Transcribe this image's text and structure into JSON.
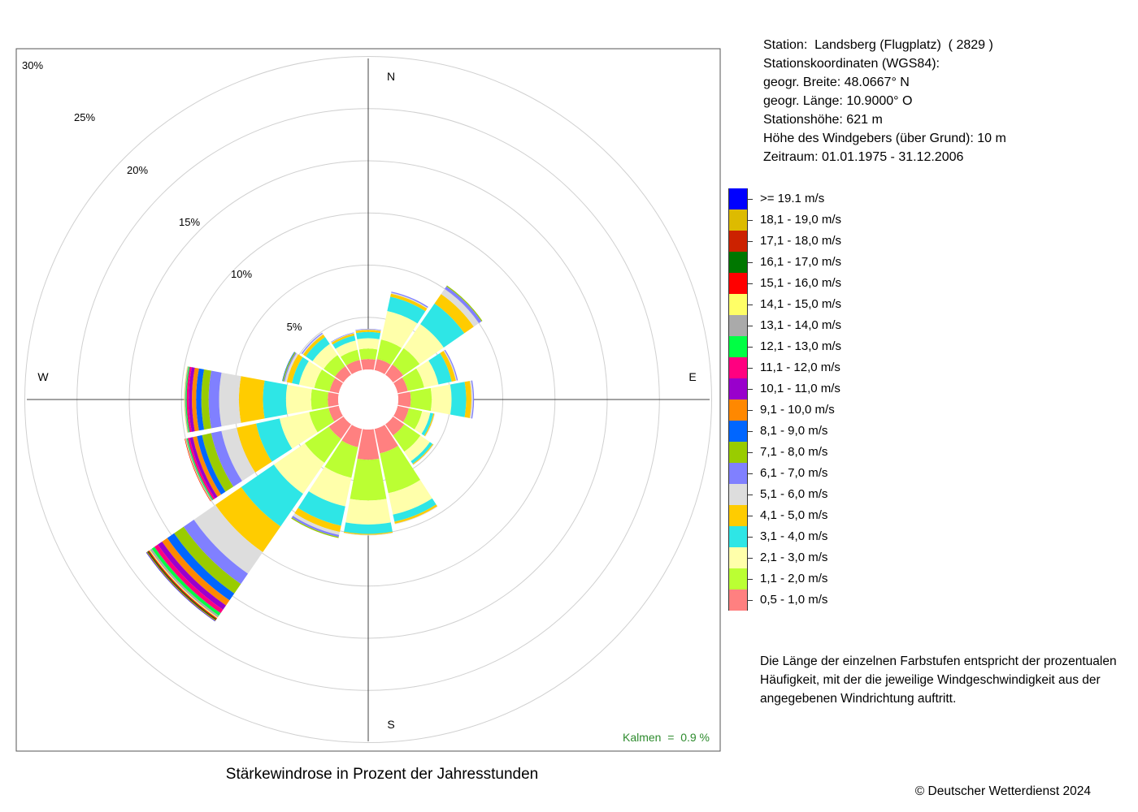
{
  "station": {
    "lines": [
      "Station:  Landsberg (Flugplatz)  ( 2829 )",
      "Stationskoordinaten (WGS84):",
      "geogr. Breite: 48.0667° N",
      "geogr. Länge: 10.9000° O",
      "Stationshöhe: 621 m",
      "Höhe des Windgebers (über Grund): 10 m",
      "Zeitraum: 01.01.1975 - 31.12.2006"
    ]
  },
  "explanation": "Die Länge der einzelnen Farbstufen entspricht der prozentualen Häufigkeit, mit der die jeweilige Windgeschwindigkeit aus der angegebenen Windrichtung auftritt.",
  "chart_title": "Stärkewindrose in Prozent der Jahresstunden",
  "copyright": "© Deutscher Wetterdienst  2024",
  "calm_text": "Kalmen  =  0.9 %",
  "chart_data": {
    "type": "wind-rose",
    "title": "Stärkewindrose in Prozent der Jahresstunden",
    "directions": [
      "N",
      "NNE",
      "NE",
      "ENE",
      "E",
      "ESE",
      "SE",
      "SSE",
      "S",
      "SSW",
      "SW",
      "WSW",
      "W",
      "WNW",
      "NW",
      "NNW"
    ],
    "compass_labels": [
      "N",
      "E",
      "S",
      "W"
    ],
    "radial_axis": {
      "unit": "%",
      "min": 0,
      "max": 30,
      "ticks": [
        5,
        10,
        15,
        20,
        25,
        30
      ],
      "tick_labels": [
        "5%",
        "10%",
        "15%",
        "20%",
        "25%",
        "30%"
      ]
    },
    "calm_percent": 0.9,
    "speed_classes": [
      {
        "label": "0,5 - 1,0 m/s",
        "color": "#ff8080"
      },
      {
        "label": "1,1 - 2,0 m/s",
        "color": "#bbff33"
      },
      {
        "label": "2,1 - 3,0 m/s",
        "color": "#ffffaa"
      },
      {
        "label": "3,1 - 4,0 m/s",
        "color": "#2ee6e6"
      },
      {
        "label": "4,1 - 5,0 m/s",
        "color": "#ffcc00"
      },
      {
        "label": "5,1 - 6,0 m/s",
        "color": "#dddddd"
      },
      {
        "label": "6,1 - 7,0 m/s",
        "color": "#8080ff"
      },
      {
        "label": "7,1 - 8,0 m/s",
        "color": "#99cc00"
      },
      {
        "label": "8,1 - 9,0 m/s",
        "color": "#0066ff"
      },
      {
        "label": "9,1 - 10,0 m/s",
        "color": "#ff8800"
      },
      {
        "label": "10,1 - 11,0 m/s",
        "color": "#9900cc"
      },
      {
        "label": "11,1 - 12,0 m/s",
        "color": "#ff0080"
      },
      {
        "label": "12,1 - 13,0 m/s",
        "color": "#00ff44"
      },
      {
        "label": "13,1 - 14,0 m/s",
        "color": "#aaaaaa"
      },
      {
        "label": "14,1 - 15,0 m/s",
        "color": "#ffff66"
      },
      {
        "label": "15,1 - 16,0 m/s",
        "color": "#ff0000"
      },
      {
        "label": "16,1 - 17,0 m/s",
        "color": "#007700"
      },
      {
        "label": "17,1 - 18,0 m/s",
        "color": "#cc2200"
      },
      {
        "label": "18,1 - 19,0 m/s",
        "color": "#ddbb00"
      },
      {
        "label": ">= 19.1 m/s",
        "color": "#0000ff"
      }
    ],
    "series": [
      {
        "direction": "N",
        "values": [
          1.0,
          1.0,
          1.0,
          0.6,
          0.2,
          0.05,
          0.05,
          0,
          0,
          0,
          0,
          0,
          0,
          0,
          0,
          0,
          0,
          0,
          0,
          0
        ]
      },
      {
        "direction": "NNE",
        "values": [
          1.1,
          1.9,
          2.8,
          1.4,
          0.3,
          0.1,
          0.1,
          0,
          0,
          0,
          0,
          0,
          0,
          0,
          0,
          0,
          0,
          0,
          0,
          0
        ]
      },
      {
        "direction": "NE",
        "values": [
          1.2,
          1.9,
          2.8,
          2.4,
          1.1,
          0.6,
          0.3,
          0.1,
          0,
          0,
          0,
          0,
          0,
          0,
          0,
          0,
          0,
          0,
          0,
          0
        ]
      },
      {
        "direction": "ENE",
        "values": [
          1.0,
          1.6,
          1.4,
          1.3,
          0.4,
          0.1,
          0.1,
          0,
          0,
          0,
          0,
          0,
          0,
          0,
          0,
          0,
          0,
          0,
          0,
          0
        ]
      },
      {
        "direction": "E",
        "values": [
          1.2,
          2.0,
          1.9,
          1.4,
          0.5,
          0.15,
          0.1,
          0,
          0,
          0,
          0,
          0,
          0,
          0,
          0,
          0,
          0,
          0,
          0,
          0
        ]
      },
      {
        "direction": "ESE",
        "values": [
          1.1,
          1.3,
          0.8,
          0.3,
          0.1,
          0.05,
          0,
          0,
          0,
          0,
          0,
          0,
          0,
          0,
          0,
          0,
          0,
          0,
          0,
          0
        ]
      },
      {
        "direction": "SE",
        "values": [
          1.3,
          1.9,
          1.1,
          0.3,
          0.1,
          0.05,
          0,
          0,
          0,
          0,
          0,
          0,
          0,
          0,
          0,
          0,
          0,
          0,
          0,
          0
        ]
      },
      {
        "direction": "SSE",
        "values": [
          2.4,
          3.9,
          2.1,
          0.7,
          0.2,
          0.05,
          0,
          0,
          0,
          0,
          0,
          0,
          0,
          0,
          0,
          0,
          0,
          0,
          0,
          0
        ]
      },
      {
        "direction": "S",
        "values": [
          2.9,
          3.9,
          2.3,
          0.9,
          0.1,
          0.05,
          0,
          0,
          0,
          0,
          0,
          0,
          0,
          0,
          0,
          0,
          0,
          0,
          0,
          0
        ]
      },
      {
        "direction": "SSW",
        "values": [
          1.8,
          3.0,
          2.8,
          1.9,
          0.6,
          0.3,
          0.2,
          0.1,
          0,
          0,
          0,
          0,
          0,
          0,
          0,
          0,
          0,
          0,
          0,
          0
        ]
      },
      {
        "direction": "SW",
        "values": [
          1.7,
          2.8,
          3.6,
          3.8,
          3.0,
          2.5,
          1.2,
          1.1,
          0.8,
          0.6,
          0.5,
          0.4,
          0.3,
          0.2,
          0.1,
          0.1,
          0.1,
          0.05,
          0.05,
          0.05
        ]
      },
      {
        "direction": "WSW",
        "values": [
          1.0,
          1.9,
          2.9,
          2.3,
          1.9,
          1.5,
          1.0,
          0.9,
          0.5,
          0.4,
          0.3,
          0.2,
          0.1,
          0.1,
          0.05,
          0.05,
          0,
          0,
          0,
          0
        ]
      },
      {
        "direction": "W",
        "values": [
          1.0,
          1.6,
          2.4,
          2.2,
          2.3,
          1.9,
          1.0,
          0.7,
          0.5,
          0.4,
          0.3,
          0.2,
          0.1,
          0.1,
          0.05,
          0,
          0,
          0,
          0,
          0
        ]
      },
      {
        "direction": "WNW",
        "values": [
          0.9,
          1.5,
          1.5,
          0.7,
          0.5,
          0.2,
          0.1,
          0.1,
          0.05,
          0,
          0,
          0,
          0,
          0,
          0,
          0,
          0,
          0,
          0,
          0
        ]
      },
      {
        "direction": "NW",
        "values": [
          1.0,
          1.3,
          1.3,
          0.8,
          0.3,
          0.1,
          0.1,
          0,
          0,
          0,
          0,
          0,
          0,
          0,
          0,
          0,
          0,
          0,
          0,
          0
        ]
      },
      {
        "direction": "NNW",
        "values": [
          1.0,
          1.0,
          0.9,
          0.5,
          0.2,
          0.05,
          0.05,
          0,
          0,
          0,
          0,
          0,
          0,
          0,
          0,
          0,
          0,
          0,
          0,
          0
        ]
      }
    ]
  }
}
